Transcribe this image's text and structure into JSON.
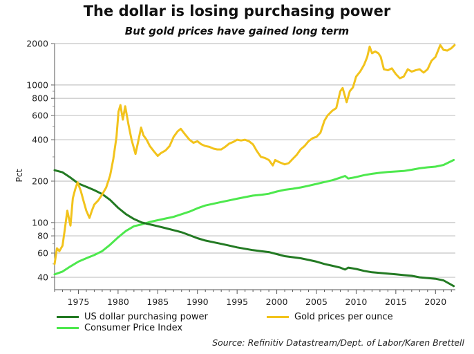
{
  "chart_data": {
    "type": "line",
    "title": "The dollar is losing purchasing power",
    "subtitle": "But gold prices have gained long term",
    "xlabel": "",
    "ylabel": "Pct",
    "yscale": "log",
    "ylim": [
      32.5,
      2000
    ],
    "xlim": [
      1972,
      2022.5
    ],
    "y_ticks": [
      40,
      60,
      80,
      100,
      200,
      400,
      600,
      800,
      1000,
      2000
    ],
    "y_tick_labels": [
      "40",
      "60",
      "80",
      "100",
      "200",
      "400",
      "600",
      "800",
      "1000",
      "2000"
    ],
    "x_ticks": [
      1975,
      1980,
      1985,
      1990,
      1995,
      2000,
      2005,
      2010,
      2015,
      2020
    ],
    "x_tick_labels": [
      "1975",
      "1980",
      "1985",
      "1990",
      "1995",
      "2000",
      "2005",
      "2010",
      "2015",
      "2020"
    ],
    "grid": true,
    "legend_position": "bottom",
    "source": "Source: Refinitiv Datastream/Dept. of Labor/Karen Brettell",
    "series": [
      {
        "name": "US dollar purchasing power",
        "color": "#237a23",
        "x": [
          1972,
          1973,
          1974,
          1975,
          1976,
          1977,
          1978,
          1979,
          1980,
          1981,
          1982,
          1983,
          1984,
          1985,
          1986,
          1987,
          1988,
          1989,
          1990,
          1991,
          1992,
          1993,
          1994,
          1995,
          1996,
          1997,
          1998,
          1999,
          2000,
          2001,
          2002,
          2003,
          2004,
          2005,
          2006,
          2007,
          2008,
          2008.6,
          2009,
          2010,
          2011,
          2012,
          2013,
          2014,
          2015,
          2016,
          2017,
          2018,
          2019,
          2020,
          2021,
          2022.3
        ],
        "values": [
          240,
          232,
          212,
          192,
          182,
          172,
          161,
          146,
          128,
          115,
          106,
          100,
          97,
          94,
          91,
          88,
          85,
          81,
          77,
          74,
          72,
          70,
          68,
          66,
          64.5,
          63,
          62,
          61,
          59,
          57,
          56,
          55,
          53.5,
          52,
          50,
          48.5,
          47,
          45.5,
          47,
          46,
          44.5,
          43.5,
          43,
          42.5,
          42,
          41.5,
          41,
          40,
          39.5,
          39,
          38,
          34.5
        ]
      },
      {
        "name": "Consumer Price Index",
        "color": "#4de84d",
        "x": [
          1972,
          1973,
          1974,
          1975,
          1976,
          1977,
          1978,
          1979,
          1980,
          1981,
          1982,
          1983,
          1984,
          1985,
          1986,
          1987,
          1988,
          1989,
          1990,
          1991,
          1992,
          1993,
          1994,
          1995,
          1996,
          1997,
          1998,
          1999,
          2000,
          2001,
          2002,
          2003,
          2004,
          2005,
          2006,
          2007,
          2008,
          2008.6,
          2009,
          2010,
          2011,
          2012,
          2013,
          2014,
          2015,
          2016,
          2017,
          2018,
          2019,
          2020,
          2021,
          2022.3
        ],
        "values": [
          42,
          44,
          48,
          52,
          55,
          58,
          62,
          69,
          78,
          87,
          94,
          97,
          101,
          104,
          107,
          110,
          115,
          120,
          127,
          133,
          137,
          141,
          145,
          149,
          153,
          157,
          159,
          162,
          168,
          173,
          176,
          180,
          185,
          191,
          197,
          203,
          212,
          218,
          209,
          214,
          221,
          226,
          230,
          233,
          235,
          237,
          242,
          248,
          252,
          255,
          262,
          285
        ]
      },
      {
        "name": "Gold prices per ounce",
        "color": "#f2c31c",
        "x": [
          1972,
          1972.3,
          1972.6,
          1973,
          1973.3,
          1973.6,
          1974,
          1974.3,
          1974.6,
          1974.9,
          1975.3,
          1975.7,
          1976,
          1976.4,
          1976.7,
          1977,
          1977.5,
          1978,
          1978.5,
          1979,
          1979.4,
          1979.8,
          1980.05,
          1980.3,
          1980.6,
          1980.9,
          1981.3,
          1981.7,
          1982.2,
          1982.5,
          1982.9,
          1983.2,
          1983.6,
          1984,
          1984.5,
          1985,
          1985.4,
          1986,
          1986.5,
          1987,
          1987.5,
          1987.9,
          1988.4,
          1989,
          1989.5,
          1990,
          1990.5,
          1991,
          1991.5,
          1992,
          1992.5,
          1993,
          1993.5,
          1994,
          1994.5,
          1995,
          1995.5,
          1996,
          1996.5,
          1997,
          1997.5,
          1998,
          1998.5,
          1999,
          1999.5,
          1999.8,
          2000.3,
          2001,
          2001.5,
          2002,
          2002.5,
          2003,
          2003.5,
          2004,
          2004.5,
          2005,
          2005.5,
          2006,
          2006.4,
          2007,
          2007.5,
          2008,
          2008.3,
          2008.8,
          2009.2,
          2009.6,
          2010,
          2010.5,
          2011,
          2011.4,
          2011.7,
          2012,
          2012.4,
          2012.8,
          2013.1,
          2013.5,
          2014,
          2014.5,
          2015,
          2015.5,
          2016,
          2016.5,
          2017,
          2017.5,
          2018,
          2018.5,
          2019,
          2019.5,
          2020,
          2020.6,
          2021,
          2021.5,
          2022,
          2022.4
        ],
        "values": [
          50,
          65,
          62,
          68,
          90,
          122,
          95,
          150,
          175,
          196,
          170,
          140,
          122,
          108,
          122,
          135,
          145,
          160,
          180,
          220,
          290,
          420,
          640,
          714,
          560,
          700,
          520,
          400,
          315,
          380,
          490,
          430,
          400,
          360,
          330,
          305,
          320,
          335,
          360,
          420,
          460,
          480,
          440,
          400,
          380,
          390,
          370,
          360,
          355,
          345,
          340,
          340,
          355,
          375,
          385,
          400,
          395,
          400,
          390,
          370,
          330,
          300,
          295,
          285,
          260,
          285,
          275,
          265,
          270,
          290,
          310,
          340,
          360,
          390,
          410,
          420,
          450,
          550,
          600,
          650,
          680,
          900,
          950,
          750,
          900,
          960,
          1150,
          1250,
          1400,
          1600,
          1900,
          1700,
          1750,
          1700,
          1600,
          1300,
          1280,
          1320,
          1200,
          1120,
          1150,
          1300,
          1250,
          1280,
          1300,
          1230,
          1300,
          1500,
          1600,
          1950,
          1800,
          1780,
          1850,
          1950
        ]
      }
    ]
  }
}
